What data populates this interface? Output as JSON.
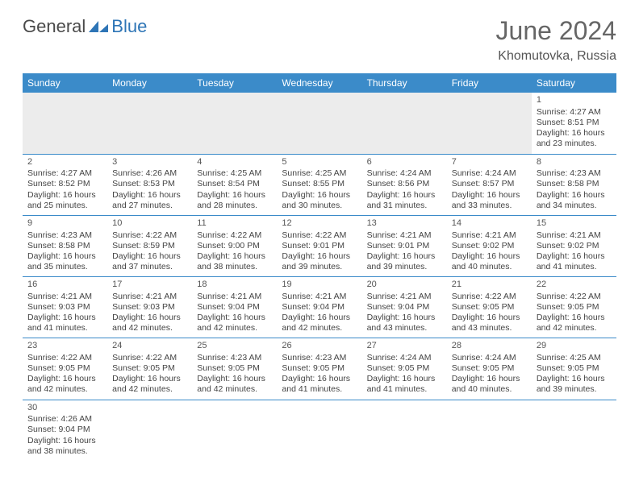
{
  "brand": {
    "part1": "General",
    "part2": "Blue"
  },
  "title": "June 2024",
  "location": "Khomutovka, Russia",
  "colors": {
    "header_bg": "#3b8bc9",
    "header_fg": "#ffffff",
    "rule": "#3b8bc9",
    "empty_bg": "#ececec",
    "text": "#444444",
    "title_color": "#666666",
    "brand_blue": "#2e75b6"
  },
  "day_headers": [
    "Sunday",
    "Monday",
    "Tuesday",
    "Wednesday",
    "Thursday",
    "Friday",
    "Saturday"
  ],
  "leading_empty": 6,
  "days": [
    {
      "n": 1,
      "sr": "4:27 AM",
      "ss": "8:51 PM",
      "dl": "16 hours and 23 minutes."
    },
    {
      "n": 2,
      "sr": "4:27 AM",
      "ss": "8:52 PM",
      "dl": "16 hours and 25 minutes."
    },
    {
      "n": 3,
      "sr": "4:26 AM",
      "ss": "8:53 PM",
      "dl": "16 hours and 27 minutes."
    },
    {
      "n": 4,
      "sr": "4:25 AM",
      "ss": "8:54 PM",
      "dl": "16 hours and 28 minutes."
    },
    {
      "n": 5,
      "sr": "4:25 AM",
      "ss": "8:55 PM",
      "dl": "16 hours and 30 minutes."
    },
    {
      "n": 6,
      "sr": "4:24 AM",
      "ss": "8:56 PM",
      "dl": "16 hours and 31 minutes."
    },
    {
      "n": 7,
      "sr": "4:24 AM",
      "ss": "8:57 PM",
      "dl": "16 hours and 33 minutes."
    },
    {
      "n": 8,
      "sr": "4:23 AM",
      "ss": "8:58 PM",
      "dl": "16 hours and 34 minutes."
    },
    {
      "n": 9,
      "sr": "4:23 AM",
      "ss": "8:58 PM",
      "dl": "16 hours and 35 minutes."
    },
    {
      "n": 10,
      "sr": "4:22 AM",
      "ss": "8:59 PM",
      "dl": "16 hours and 37 minutes."
    },
    {
      "n": 11,
      "sr": "4:22 AM",
      "ss": "9:00 PM",
      "dl": "16 hours and 38 minutes."
    },
    {
      "n": 12,
      "sr": "4:22 AM",
      "ss": "9:01 PM",
      "dl": "16 hours and 39 minutes."
    },
    {
      "n": 13,
      "sr": "4:21 AM",
      "ss": "9:01 PM",
      "dl": "16 hours and 39 minutes."
    },
    {
      "n": 14,
      "sr": "4:21 AM",
      "ss": "9:02 PM",
      "dl": "16 hours and 40 minutes."
    },
    {
      "n": 15,
      "sr": "4:21 AM",
      "ss": "9:02 PM",
      "dl": "16 hours and 41 minutes."
    },
    {
      "n": 16,
      "sr": "4:21 AM",
      "ss": "9:03 PM",
      "dl": "16 hours and 41 minutes."
    },
    {
      "n": 17,
      "sr": "4:21 AM",
      "ss": "9:03 PM",
      "dl": "16 hours and 42 minutes."
    },
    {
      "n": 18,
      "sr": "4:21 AM",
      "ss": "9:04 PM",
      "dl": "16 hours and 42 minutes."
    },
    {
      "n": 19,
      "sr": "4:21 AM",
      "ss": "9:04 PM",
      "dl": "16 hours and 42 minutes."
    },
    {
      "n": 20,
      "sr": "4:21 AM",
      "ss": "9:04 PM",
      "dl": "16 hours and 43 minutes."
    },
    {
      "n": 21,
      "sr": "4:22 AM",
      "ss": "9:05 PM",
      "dl": "16 hours and 43 minutes."
    },
    {
      "n": 22,
      "sr": "4:22 AM",
      "ss": "9:05 PM",
      "dl": "16 hours and 42 minutes."
    },
    {
      "n": 23,
      "sr": "4:22 AM",
      "ss": "9:05 PM",
      "dl": "16 hours and 42 minutes."
    },
    {
      "n": 24,
      "sr": "4:22 AM",
      "ss": "9:05 PM",
      "dl": "16 hours and 42 minutes."
    },
    {
      "n": 25,
      "sr": "4:23 AM",
      "ss": "9:05 PM",
      "dl": "16 hours and 42 minutes."
    },
    {
      "n": 26,
      "sr": "4:23 AM",
      "ss": "9:05 PM",
      "dl": "16 hours and 41 minutes."
    },
    {
      "n": 27,
      "sr": "4:24 AM",
      "ss": "9:05 PM",
      "dl": "16 hours and 41 minutes."
    },
    {
      "n": 28,
      "sr": "4:24 AM",
      "ss": "9:05 PM",
      "dl": "16 hours and 40 minutes."
    },
    {
      "n": 29,
      "sr": "4:25 AM",
      "ss": "9:05 PM",
      "dl": "16 hours and 39 minutes."
    },
    {
      "n": 30,
      "sr": "4:26 AM",
      "ss": "9:04 PM",
      "dl": "16 hours and 38 minutes."
    }
  ],
  "labels": {
    "sunrise": "Sunrise:",
    "sunset": "Sunset:",
    "daylight": "Daylight:"
  }
}
